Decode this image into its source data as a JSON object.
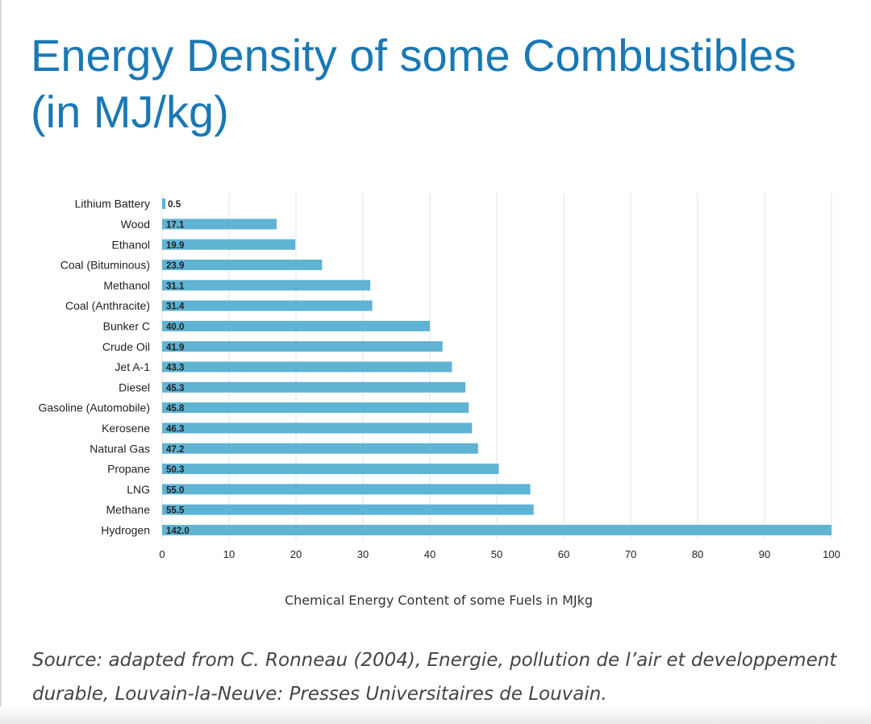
{
  "page": {
    "title": "Energy Density of some Combustibles (in MJ/kg)",
    "source": "Source: adapted from C. Ronneau (2004), Energie, pollution de l’air et developpement durable, Louvain-la-Neuve: Presses Universitaires de Louvain."
  },
  "colors": {
    "title": "#1a78b4",
    "bar": "#5fb3d3",
    "grid": "#e3e3e3",
    "text": "#222222"
  },
  "chart_data": {
    "type": "bar",
    "orientation": "horizontal",
    "title": "Energy Density of some Combustibles (in MJ/kg)",
    "xlabel": "Chemical Energy Content of some Fuels in MJkg",
    "ylabel": "",
    "xlim": [
      0,
      100
    ],
    "xticks": [
      "0",
      "10",
      "20",
      "30",
      "40",
      "50",
      "60",
      "70",
      "80",
      "90",
      "100"
    ],
    "grid": true,
    "categories": [
      "Lithium Battery",
      "Wood",
      "Ethanol",
      "Coal (Bituminous)",
      "Methanol",
      "Coal (Anthracite)",
      "Bunker C",
      "Crude Oil",
      "Jet A-1",
      "Diesel",
      "Gasoline (Automobile)",
      "Kerosene",
      "Natural Gas",
      "Propane",
      "LNG",
      "Methane",
      "Hydrogen"
    ],
    "values": [
      0.5,
      17.1,
      19.9,
      23.9,
      31.1,
      31.4,
      40.0,
      41.9,
      43.3,
      45.3,
      45.8,
      46.3,
      47.2,
      50.3,
      55.0,
      55.5,
      142.0
    ],
    "value_labels": [
      "0.5",
      "17.1",
      "19.9",
      "23.9",
      "31.1",
      "31.4",
      "40.0",
      "41.9",
      "43.3",
      "45.3",
      "45.8",
      "46.3",
      "47.2",
      "50.3",
      "55.0",
      "55.5",
      "142.0"
    ]
  }
}
